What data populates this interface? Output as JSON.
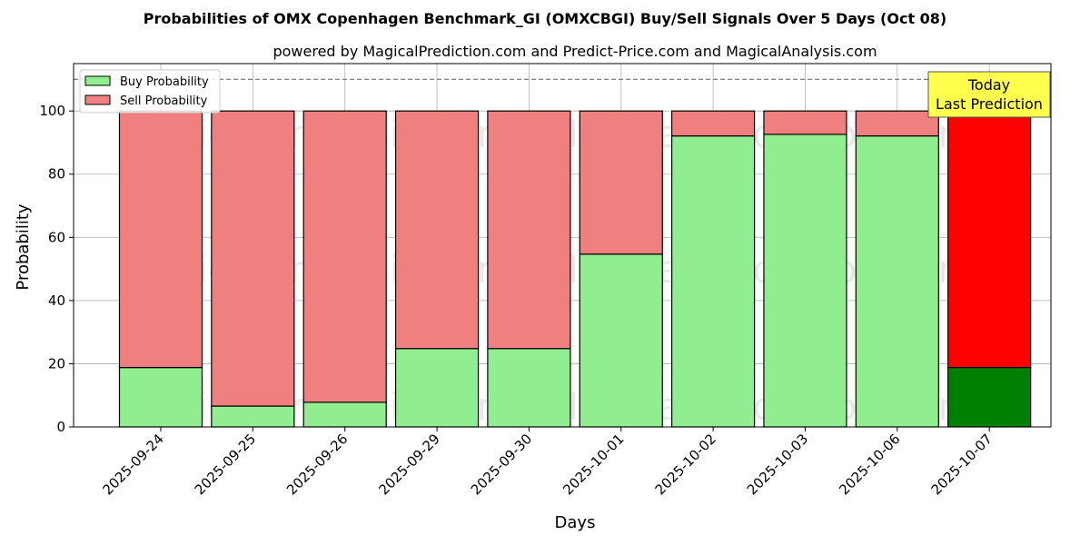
{
  "chart_data": {
    "type": "bar",
    "stacked": true,
    "title": "Probabilities of OMX Copenhagen Benchmark_GI (OMXCBGI) Buy/Sell Signals Over 5 Days (Oct 08)",
    "subtitle": "powered by MagicalPrediction.com and Predict-Price.com and MagicalAnalysis.com",
    "xlabel": "Days",
    "ylabel": "Probability",
    "ylim": [
      0,
      115
    ],
    "yticks": [
      0,
      20,
      40,
      60,
      80,
      100
    ],
    "reference_line": 110,
    "grid": true,
    "legend_position": "top-left",
    "categories": [
      "2025-09-24",
      "2025-09-25",
      "2025-09-26",
      "2025-09-29",
      "2025-09-30",
      "2025-10-01",
      "2025-10-02",
      "2025-10-03",
      "2025-10-06",
      "2025-10-07"
    ],
    "series": [
      {
        "name": "Buy Probability",
        "color": "#90ee90",
        "highlight_color": "#008000",
        "values": [
          18.8,
          6.6,
          7.8,
          24.8,
          24.8,
          54.7,
          92.1,
          92.6,
          92.1,
          18.8
        ]
      },
      {
        "name": "Sell Probability",
        "color": "#f08080",
        "highlight_color": "#ff0000",
        "values": [
          81.2,
          93.4,
          92.2,
          75.2,
          75.2,
          45.3,
          7.9,
          7.4,
          7.9,
          81.2
        ]
      }
    ],
    "highlight_index": 9,
    "annotation": {
      "lines": [
        "Today",
        "Last Prediction"
      ],
      "background": "#ffff4d"
    },
    "watermarks": [
      "MagicalAnalysis.com",
      "MagicalPrediction.com"
    ]
  }
}
